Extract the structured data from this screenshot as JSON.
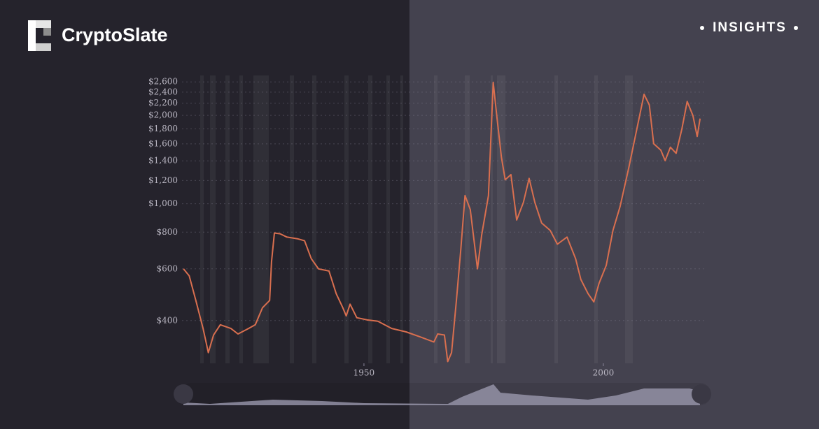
{
  "header": {
    "brand": "CryptoSlate",
    "badge": "INSIGHTS"
  },
  "chart_data": {
    "type": "line",
    "log_y": true,
    "grid": true,
    "color": "#d96f4f",
    "x": [
      1912.3,
      1913.5,
      1914.9,
      1916.4,
      1917.5,
      1918.6,
      1920.0,
      1922.2,
      1923.7,
      1925.9,
      1927.3,
      1928.8,
      1930.3,
      1930.7,
      1931.3,
      1932.5,
      1933.9,
      1936.1,
      1937.6,
      1939.0,
      1940.5,
      1942.7,
      1944.2,
      1945.6,
      1946.3,
      1947.1,
      1948.5,
      1950.7,
      1952.9,
      1955.8,
      1958.8,
      1961.7,
      1964.6,
      1965.4,
      1966.8,
      1967.5,
      1968.3,
      1969.3,
      1970.2,
      1971.1,
      1972.2,
      1973.7,
      1974.6,
      1976.0,
      1977.0,
      1977.8,
      1978.7,
      1979.5,
      1980.7,
      1981.9,
      1983.3,
      1984.5,
      1985.7,
      1987.1,
      1988.9,
      1990.4,
      1992.4,
      1994.2,
      1995.3,
      1996.8,
      1998.0,
      1999.1,
      2000.6,
      2002.0,
      2003.5,
      2005.3,
      2007.0,
      2008.5,
      2009.6,
      2010.5,
      2012.0,
      2012.9,
      2014.0,
      2015.2,
      2016.4,
      2017.5,
      2018.7,
      2019.6,
      2020.2
    ],
    "values": [
      600,
      568,
      468,
      376,
      311,
      357,
      387,
      376,
      360,
      376,
      387,
      442,
      468,
      635,
      795,
      790,
      770,
      760,
      748,
      650,
      600,
      590,
      494,
      442,
      415,
      455,
      409,
      402,
      398,
      376,
      366,
      352,
      338,
      360,
      357,
      290,
      311,
      468,
      690,
      1066,
      956,
      600,
      785,
      1066,
      2590,
      1950,
      1442,
      1207,
      1257,
      880,
      1010,
      1220,
      1010,
      860,
      811,
      728,
      770,
      650,
      552,
      494,
      463,
      536,
      617,
      810,
      980,
      1324,
      1797,
      2360,
      2170,
      1602,
      1522,
      1402,
      1558,
      1485,
      1797,
      2230,
      1996,
      1695,
      1950
    ],
    "xlim": [
      1912,
      2021
    ],
    "xticks": [
      1950,
      2000
    ],
    "ylim": [
      286,
      2735
    ],
    "yticks": [
      {
        "value": 400,
        "label": "$400"
      },
      {
        "value": 600,
        "label": "$600"
      },
      {
        "value": 800,
        "label": "$800"
      },
      {
        "value": 1000,
        "label": "$1,000"
      },
      {
        "value": 1200,
        "label": "$1,200"
      },
      {
        "value": 1400,
        "label": "$1,400"
      },
      {
        "value": 1600,
        "label": "$1,600"
      },
      {
        "value": 1800,
        "label": "$1,800"
      },
      {
        "value": 2000,
        "label": "$2,000"
      },
      {
        "value": 2200,
        "label": "$2,200"
      },
      {
        "value": 2400,
        "label": "$2,400"
      },
      {
        "value": 2600,
        "label": "$2,600"
      }
    ]
  }
}
